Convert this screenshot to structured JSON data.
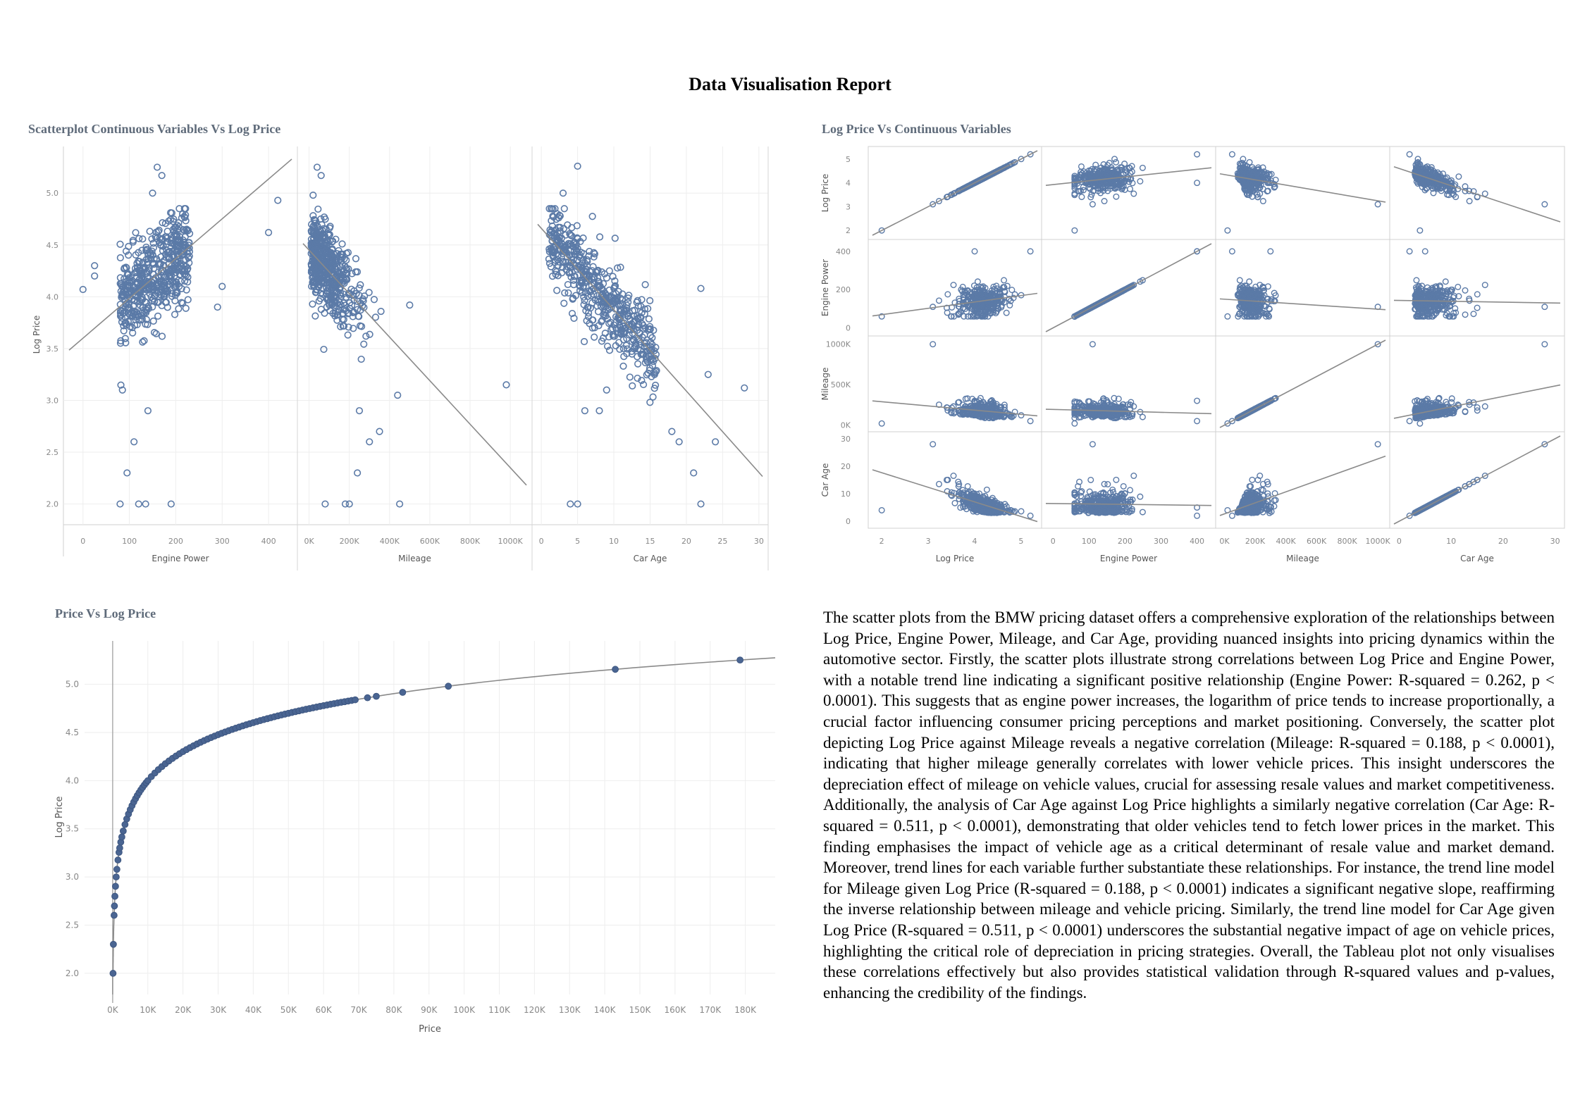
{
  "title": "Data Visualisation Report",
  "colors": {
    "mark": "#5b7aa7",
    "mark_fill": "#4a6592",
    "trend": "#8a8a8a",
    "grid": "#eeeeee"
  },
  "chart_data": [
    {
      "id": "scatter-vs-logprice",
      "type": "scatter",
      "title": "Scatterplot Continuous Variables Vs Log Price",
      "ylabel": "Log Price",
      "y_ticks": [
        "2.0",
        "2.5",
        "3.0",
        "3.5",
        "4.0",
        "4.5",
        "5.0"
      ],
      "ylim": [
        1.8,
        5.45
      ],
      "panes": [
        {
          "xlabel": "Engine Power",
          "x_ticks": [
            "0",
            "100",
            "200",
            "300",
            "400"
          ],
          "x_tick_values": [
            0,
            100,
            200,
            300,
            400
          ],
          "xlim": [
            -30,
            450
          ],
          "trend": {
            "intercept": 3.6,
            "slope": 0.00384
          },
          "x_center": [
            150,
            260
          ],
          "y_center": [
            3.95,
            4.55
          ],
          "outliers": [
            [
              0,
              4.07
            ],
            [
              25,
              4.3
            ],
            [
              25,
              4.2
            ],
            [
              400,
              4.62
            ],
            [
              420,
              4.93
            ],
            [
              160,
              5.25
            ],
            [
              170,
              5.17
            ],
            [
              150,
              5.0
            ],
            [
              80,
              2.0
            ],
            [
              120,
              2.0
            ],
            [
              135,
              2.0
            ],
            [
              190,
              2.0
            ],
            [
              95,
              2.3
            ],
            [
              110,
              2.6
            ],
            [
              85,
              3.1
            ],
            [
              140,
              2.9
            ],
            [
              300,
              4.1
            ],
            [
              290,
              3.9
            ]
          ]
        },
        {
          "xlabel": "Mileage",
          "x_ticks": [
            "0K",
            "200K",
            "400K",
            "600K",
            "800K",
            "1000K"
          ],
          "x_tick_values": [
            0,
            200000,
            400000,
            600000,
            800000,
            1000000
          ],
          "xlim": [
            -30000,
            1080000
          ],
          "trend": {
            "intercept": 4.45,
            "slope": -2.1e-06
          },
          "x_center": [
            120000,
            100000
          ],
          "y_center": [
            4.15,
            0.45
          ],
          "outliers": [
            [
              40000,
              5.25
            ],
            [
              60000,
              5.17
            ],
            [
              20000,
              4.98
            ],
            [
              500000,
              3.92
            ],
            [
              440000,
              3.05
            ],
            [
              980000,
              3.15
            ],
            [
              80000,
              2.0
            ],
            [
              180000,
              2.0
            ],
            [
              200000,
              2.0
            ],
            [
              450000,
              2.0
            ],
            [
              240000,
              2.3
            ],
            [
              300000,
              2.6
            ],
            [
              350000,
              2.7
            ],
            [
              250000,
              2.9
            ]
          ]
        },
        {
          "xlabel": "Car Age",
          "x_ticks": [
            "0",
            "5",
            "10",
            "15",
            "20",
            "25",
            "30"
          ],
          "x_tick_values": [
            0,
            5,
            10,
            15,
            20,
            25,
            30
          ],
          "xlim": [
            -0.5,
            30.5
          ],
          "trend": {
            "intercept": 4.66,
            "slope": -0.0785
          },
          "x_center": [
            6,
            5
          ],
          "y_center": [
            4.2,
            0.4
          ],
          "outliers": [
            [
              5,
              5.26
            ],
            [
              3,
              5.0
            ],
            [
              4,
              2.0
            ],
            [
              5,
              2.0
            ],
            [
              22,
              2.0
            ],
            [
              21,
              2.3
            ],
            [
              24,
              2.6
            ],
            [
              23,
              3.25
            ],
            [
              28,
              3.12
            ],
            [
              22,
              4.08
            ],
            [
              19,
              2.6
            ],
            [
              18,
              2.7
            ],
            [
              6,
              2.9
            ],
            [
              8,
              2.9
            ],
            [
              9,
              3.1
            ]
          ]
        }
      ]
    },
    {
      "id": "scatter-matrix",
      "type": "scatter",
      "title": "Log Price Vs Continuous Variables",
      "variables": [
        {
          "name": "Log Price",
          "label": "Log Price",
          "ticks": [
            "2",
            "3",
            "4",
            "5"
          ],
          "tick_values": [
            2,
            3,
            4,
            5
          ],
          "lim": [
            1.8,
            5.35
          ]
        },
        {
          "name": "Engine Power",
          "label": "Engine Power",
          "ticks": [
            "0",
            "200",
            "400"
          ],
          "x_ticks": [
            "0",
            "100",
            "200",
            "300",
            "400"
          ],
          "tick_values": [
            0,
            200,
            400
          ],
          "x_tick_values": [
            0,
            100,
            200,
            300,
            400
          ],
          "lim": [
            -20,
            440
          ]
        },
        {
          "name": "Mileage",
          "label": "Mileage",
          "ticks": [
            "0K",
            "500K",
            "1000K"
          ],
          "x_ticks": [
            "0K",
            "200K",
            "400K",
            "600K",
            "800K",
            "1000K"
          ],
          "tick_values": [
            0,
            500000,
            1000000
          ],
          "x_tick_values": [
            0,
            200000,
            400000,
            600000,
            800000,
            1000000
          ],
          "lim": [
            -30000,
            1050000
          ]
        },
        {
          "name": "Car Age",
          "label": "Car Age",
          "ticks": [
            "0",
            "10",
            "20",
            "30"
          ],
          "x_ticks": [
            "0",
            "10",
            "20",
            "30"
          ],
          "tick_values": [
            0,
            10,
            20,
            30
          ],
          "x_tick_values": [
            0,
            10,
            20,
            30
          ],
          "lim": [
            -1,
            31
          ]
        }
      ]
    },
    {
      "id": "price-vs-logprice",
      "type": "scatter",
      "title": "Price Vs Log Price",
      "xlabel": "Price",
      "ylabel": "Log Price",
      "x_ticks": [
        "0K",
        "10K",
        "20K",
        "30K",
        "40K",
        "50K",
        "60K",
        "70K",
        "80K",
        "90K",
        "100K",
        "110K",
        "120K",
        "130K",
        "140K",
        "150K",
        "160K",
        "170K",
        "180K"
      ],
      "x_tick_values": [
        0,
        10000,
        20000,
        30000,
        40000,
        50000,
        60000,
        70000,
        80000,
        90000,
        100000,
        110000,
        120000,
        130000,
        140000,
        150000,
        160000,
        170000,
        180000
      ],
      "y_ticks": [
        "2.0",
        "2.5",
        "3.0",
        "3.5",
        "4.0",
        "4.5",
        "5.0"
      ],
      "y_tick_values": [
        2.0,
        2.5,
        3.0,
        3.5,
        4.0,
        4.5,
        5.0
      ],
      "xlim": [
        -8000,
        188500
      ],
      "ylim": [
        1.78,
        5.45
      ],
      "relation": "log10",
      "points_x": [
        100,
        200,
        400,
        500,
        630,
        800,
        1000,
        1200,
        1500,
        1800,
        2000,
        2300,
        2600,
        3000,
        3500,
        4000,
        4500,
        5000,
        5500,
        6000,
        6500,
        7000,
        7500,
        8000,
        8500,
        9000,
        9500,
        10000,
        11000,
        12000,
        13000,
        14000,
        15000,
        16000,
        17000,
        18000,
        19000,
        20000,
        21000,
        22000,
        23000,
        24000,
        25000,
        26000,
        27000,
        28000,
        29000,
        30000,
        31000,
        32000,
        33000,
        34000,
        35000,
        36000,
        37000,
        38000,
        39000,
        40000,
        41000,
        42000,
        43000,
        44000,
        45000,
        46000,
        47000,
        48000,
        49000,
        50000,
        51000,
        52000,
        53000,
        54000,
        55000,
        56000,
        57000,
        58000,
        59000,
        60000,
        61000,
        62000,
        63000,
        64000,
        65000,
        66000,
        67000,
        68000,
        69000,
        72500,
        75000,
        82500,
        95500,
        143000,
        178500
      ]
    }
  ],
  "narrative": "The scatter plots from the BMW pricing dataset offers a comprehensive exploration of the relationships between Log Price, Engine Power, Mileage, and Car Age, providing nuanced insights into pricing dynamics within the automotive sector. Firstly, the scatter plots illustrate strong correlations between Log Price and Engine Power, with a notable trend line indicating a significant positive relationship (Engine Power: R-squared = 0.262, p < 0.0001). This suggests that as engine power increases, the logarithm of price tends to increase proportionally, a crucial factor influencing consumer pricing perceptions and market positioning. Conversely, the scatter plot depicting Log Price against Mileage reveals a negative correlation (Mileage: R-squared = 0.188, p < 0.0001), indicating that higher mileage generally correlates with lower vehicle prices. This insight underscores the depreciation effect of mileage on vehicle values, crucial for assessing resale values and market competitiveness. Additionally, the analysis of Car Age against Log Price highlights a similarly negative correlation (Car Age: R-squared = 0.511, p < 0.0001), demonstrating that older vehicles tend to fetch lower prices in the market. This finding emphasises the impact of vehicle age as a critical determinant of resale value and market demand. Moreover, trend lines for each variable further substantiate these relationships. For instance, the trend line model for Mileage given Log Price (R-squared = 0.188, p < 0.0001) indicates a significant negative slope, reaffirming the inverse relationship between mileage and vehicle pricing. Similarly, the trend line model for Car Age given Log Price (R-squared = 0.511, p < 0.0001) underscores the substantial negative impact of age on vehicle prices, highlighting the critical role of depreciation in pricing strategies. Overall, the Tableau plot not only visualises these correlations effectively but also provides statistical validation through R-squared values and p-values, enhancing the credibility of the findings."
}
